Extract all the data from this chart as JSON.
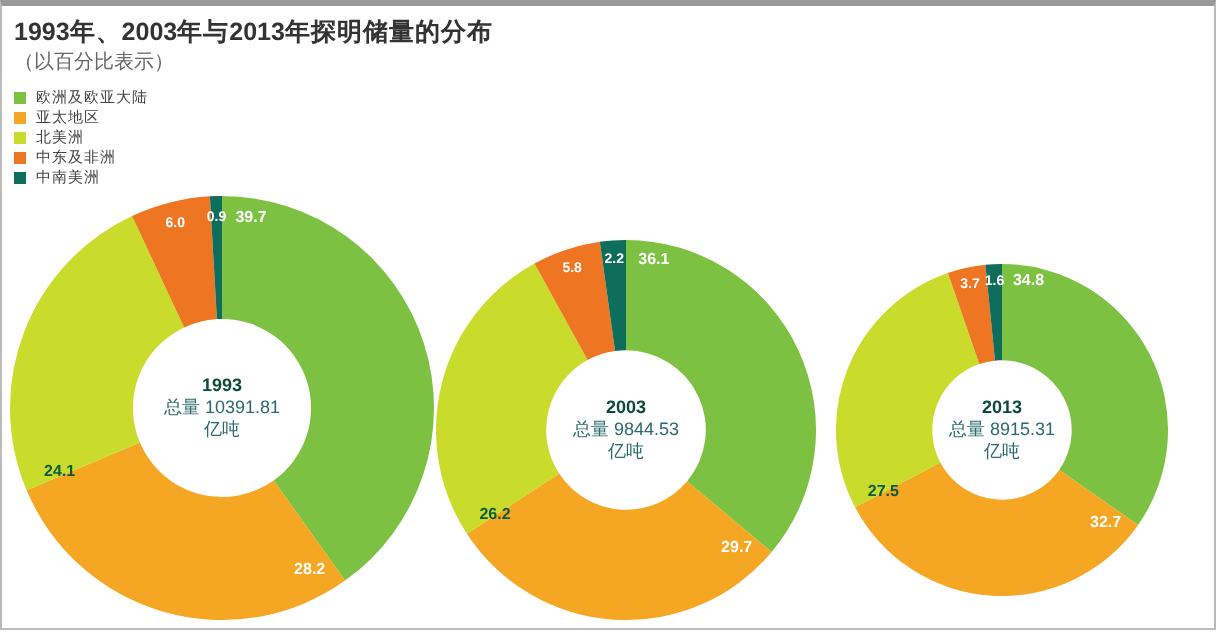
{
  "chart_data": [
    {
      "type": "donut",
      "title": "1993年、2003年与2013年探明储量的分布",
      "subtitle": "（以百分比表示）",
      "legend": "top left",
      "value_labels": [
        "39.7",
        "28.2",
        "24.1",
        "6.0",
        "0.9"
      ],
      "categories": [
        "欧洲及欧亚大陆",
        "亚太地区",
        "北美洲",
        "中东及非洲",
        "中南美洲"
      ],
      "values": [
        39.7,
        28.2,
        24.1,
        6.0,
        0.9
      ],
      "colors": [
        "#7dc142",
        "#f5a623",
        "#c9dc2b",
        "#ee7623",
        "#0e6e5b"
      ],
      "annotations": [
        "1993",
        "总量 10391.81",
        "亿吨"
      ]
    },
    {
      "type": "donut",
      "data_labels": true,
      "categories": [
        null,
        null,
        null,
        null,
        null
      ],
      "values": [
        36.1,
        29.7,
        26.2,
        5.8,
        2.2
      ],
      "colors": [
        "#7dc142",
        "#f5a623",
        "#c9dc2b",
        "#ee7623",
        "#0e6e5b"
      ],
      "annotations": [
        "2003",
        "总量 9844.53",
        "亿吨"
      ]
    },
    {
      "type": "donut",
      "data_labels": true,
      "categories": [
        null,
        null,
        null,
        null,
        null
      ],
      "values": [
        34.8,
        32.7,
        27.5,
        3.7,
        1.6
      ],
      "colors": [
        "#7dc142",
        "#f5a623",
        "#c9dc2b",
        "#ee7623",
        "#0e6e5b"
      ],
      "annotations": [
        "2013",
        "总量 8915.31",
        "亿吨"
      ]
    }
  ]
}
